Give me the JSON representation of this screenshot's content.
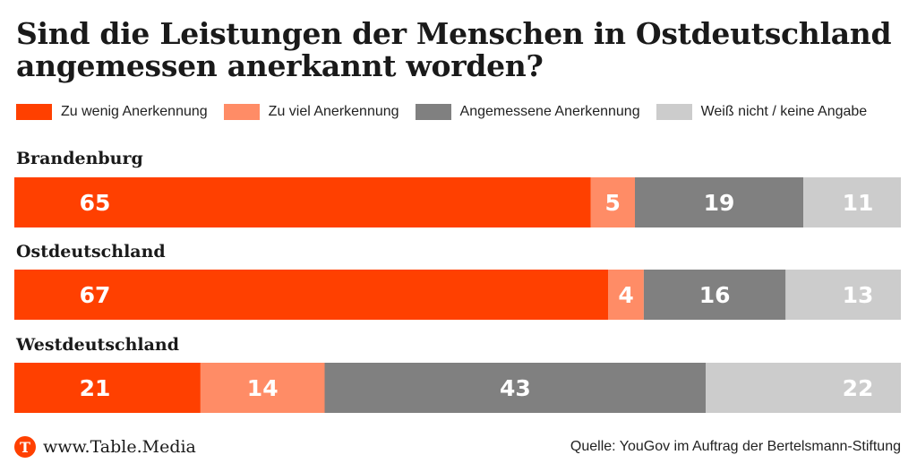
{
  "title_lines": [
    "Sind die Leistungen der Menschen in Ostdeutschland",
    "angemessen anerkannt worden?"
  ],
  "chart_data": {
    "type": "bar",
    "orientation": "horizontal-stacked-100",
    "categories": [
      "Brandenburg",
      "Ostdeutschland",
      "Westdeutschland"
    ],
    "series": [
      {
        "name": "Zu wenig Anerkennung",
        "color": "#ff4000",
        "values": [
          65,
          67,
          21
        ]
      },
      {
        "name": "Zu viel Anerkennung",
        "color": "#ff8c66",
        "values": [
          5,
          4,
          14
        ]
      },
      {
        "name": "Angemessene Anerkennung",
        "color": "#808080",
        "values": [
          19,
          16,
          43
        ]
      },
      {
        "name": "Weiß nicht / keine Angabe",
        "color": "#cccccc",
        "values": [
          11,
          13,
          22
        ]
      }
    ],
    "xlim": [
      0,
      100
    ],
    "legend": "top-left"
  },
  "logo": {
    "letter": "T",
    "text": "www.Table.Media"
  },
  "source": "Quelle: YouGov im Auftrag der Bertelsmann-Stiftung"
}
